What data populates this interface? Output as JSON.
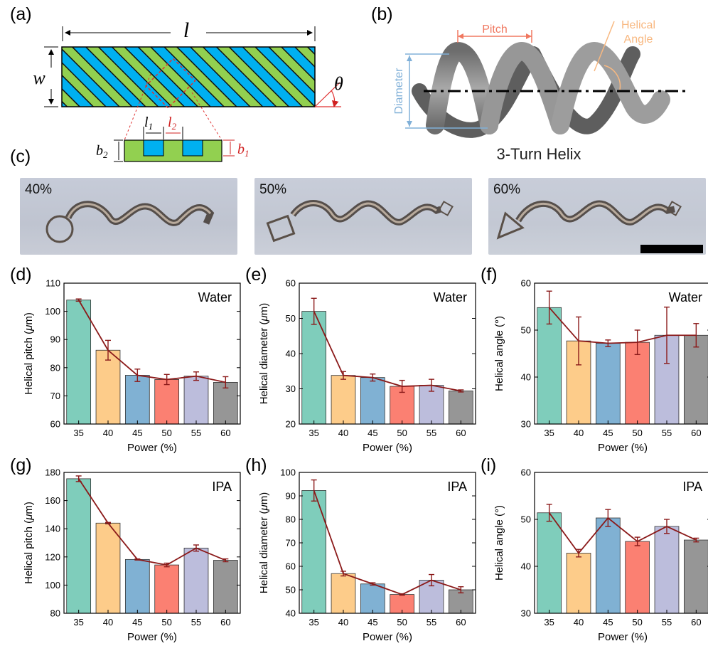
{
  "panels": {
    "a": "(a)",
    "b": "(b)",
    "c": "(c)",
    "d": "(d)",
    "e": "(e)",
    "f": "(f)",
    "g": "(g)",
    "h": "(h)",
    "i": "(i)"
  },
  "schematic_a": {
    "length_symbol": "l",
    "width_symbol": "w",
    "angle_symbol": "θ",
    "l1_symbol": "l",
    "l1_sub": "1",
    "l2_symbol": "l",
    "l2_sub": "2",
    "b1_symbol": "b",
    "b1_sub": "1",
    "b2_symbol": "b",
    "b2_sub": "2",
    "colors": {
      "green": "#92d050",
      "blue": "#00b0f0",
      "red": "#e04040"
    }
  },
  "schematic_b": {
    "pitch_label": "Pitch",
    "diameter_label": "Diameter",
    "angle_label_line1": "Helical",
    "angle_label_line2": "Angle",
    "caption": "3-Turn Helix",
    "colors": {
      "pitch": "#f07860",
      "diameter": "#80b0d8",
      "angle": "#f8b880",
      "tube": "#8a8a8a"
    }
  },
  "photos": [
    {
      "label": "40%"
    },
    {
      "label": "50%"
    },
    {
      "label": "60%"
    }
  ],
  "bar_colors": [
    "#7fcdbb",
    "#fdcc8a",
    "#80b1d3",
    "#fb8072",
    "#bcbddc",
    "#969696"
  ],
  "line_color": "#8b1a1a",
  "chart_data": [
    {
      "type": "bar",
      "panel": "d",
      "annotation": "Water",
      "categories": [
        "35",
        "40",
        "45",
        "50",
        "55",
        "60"
      ],
      "values": [
        104,
        86.2,
        77.3,
        75.8,
        77.0,
        74.8
      ],
      "errors": [
        0.4,
        3.5,
        2.2,
        1.8,
        1.5,
        2.0
      ],
      "xlabel": "Power (%)",
      "ylabel_prefix": "Helical pitch (",
      "ylabel_unit": "μ",
      "ylabel_suffix": "m)",
      "ylim": [
        60,
        110
      ],
      "yticks": [
        60,
        70,
        80,
        90,
        100,
        110
      ]
    },
    {
      "type": "bar",
      "panel": "e",
      "annotation": "Water",
      "categories": [
        "35",
        "40",
        "45",
        "50",
        "55",
        "60"
      ],
      "values": [
        52,
        33.8,
        33.2,
        30.7,
        31.0,
        29.4
      ],
      "errors": [
        3.7,
        1.1,
        1.0,
        1.7,
        1.7,
        0.3
      ],
      "xlabel": "Power (%)",
      "ylabel_prefix": "Helical diameter (",
      "ylabel_unit": "μ",
      "ylabel_suffix": "m)",
      "ylim": [
        20,
        60
      ],
      "yticks": [
        20,
        30,
        40,
        50,
        60
      ]
    },
    {
      "type": "bar",
      "panel": "f",
      "annotation": "Water",
      "categories": [
        "35",
        "40",
        "45",
        "50",
        "55",
        "60"
      ],
      "values": [
        54.8,
        47.7,
        47.2,
        47.4,
        48.9,
        48.9
      ],
      "errors": [
        3.5,
        5.1,
        0.7,
        2.6,
        6.0,
        2.5
      ],
      "xlabel": "Power (%)",
      "ylabel_prefix": "Helical angle (°)",
      "ylabel_unit": "",
      "ylabel_suffix": "",
      "ylim": [
        30,
        60
      ],
      "yticks": [
        30,
        40,
        50,
        60
      ]
    },
    {
      "type": "bar",
      "panel": "g",
      "annotation": "IPA",
      "categories": [
        "35",
        "40",
        "45",
        "50",
        "55",
        "60"
      ],
      "values": [
        175.5,
        144,
        118.2,
        114.3,
        126.3,
        117.6
      ],
      "errors": [
        2.0,
        0.5,
        0.4,
        1.3,
        2.2,
        1.0
      ],
      "xlabel": "Power (%)",
      "ylabel_prefix": "Helical pitch (",
      "ylabel_unit": "μ",
      "ylabel_suffix": "m)",
      "ylim": [
        80,
        180
      ],
      "yticks": [
        80,
        100,
        120,
        140,
        160,
        180
      ]
    },
    {
      "type": "bar",
      "panel": "h",
      "annotation": "IPA",
      "categories": [
        "35",
        "40",
        "45",
        "50",
        "55",
        "60"
      ],
      "values": [
        92.3,
        56.9,
        52.5,
        48.0,
        54.1,
        50.0
      ],
      "errors": [
        4.5,
        1.0,
        0.5,
        0.3,
        2.4,
        1.3
      ],
      "xlabel": "Power (%)",
      "ylabel_prefix": "Helical diameter (",
      "ylabel_unit": "μ",
      "ylabel_suffix": "m)",
      "ylim": [
        40,
        100
      ],
      "yticks": [
        40,
        50,
        60,
        70,
        80,
        90,
        100
      ]
    },
    {
      "type": "bar",
      "panel": "i",
      "annotation": "IPA",
      "categories": [
        "35",
        "40",
        "45",
        "50",
        "55",
        "60"
      ],
      "values": [
        51.4,
        42.8,
        50.3,
        45.3,
        48.5,
        45.6
      ],
      "errors": [
        1.8,
        0.8,
        1.8,
        0.9,
        1.5,
        0.4
      ],
      "xlabel": "Power (%)",
      "ylabel_prefix": "Helical angle (°)",
      "ylabel_unit": "",
      "ylabel_suffix": "",
      "ylim": [
        30,
        60
      ],
      "yticks": [
        30,
        40,
        50,
        60
      ]
    }
  ]
}
